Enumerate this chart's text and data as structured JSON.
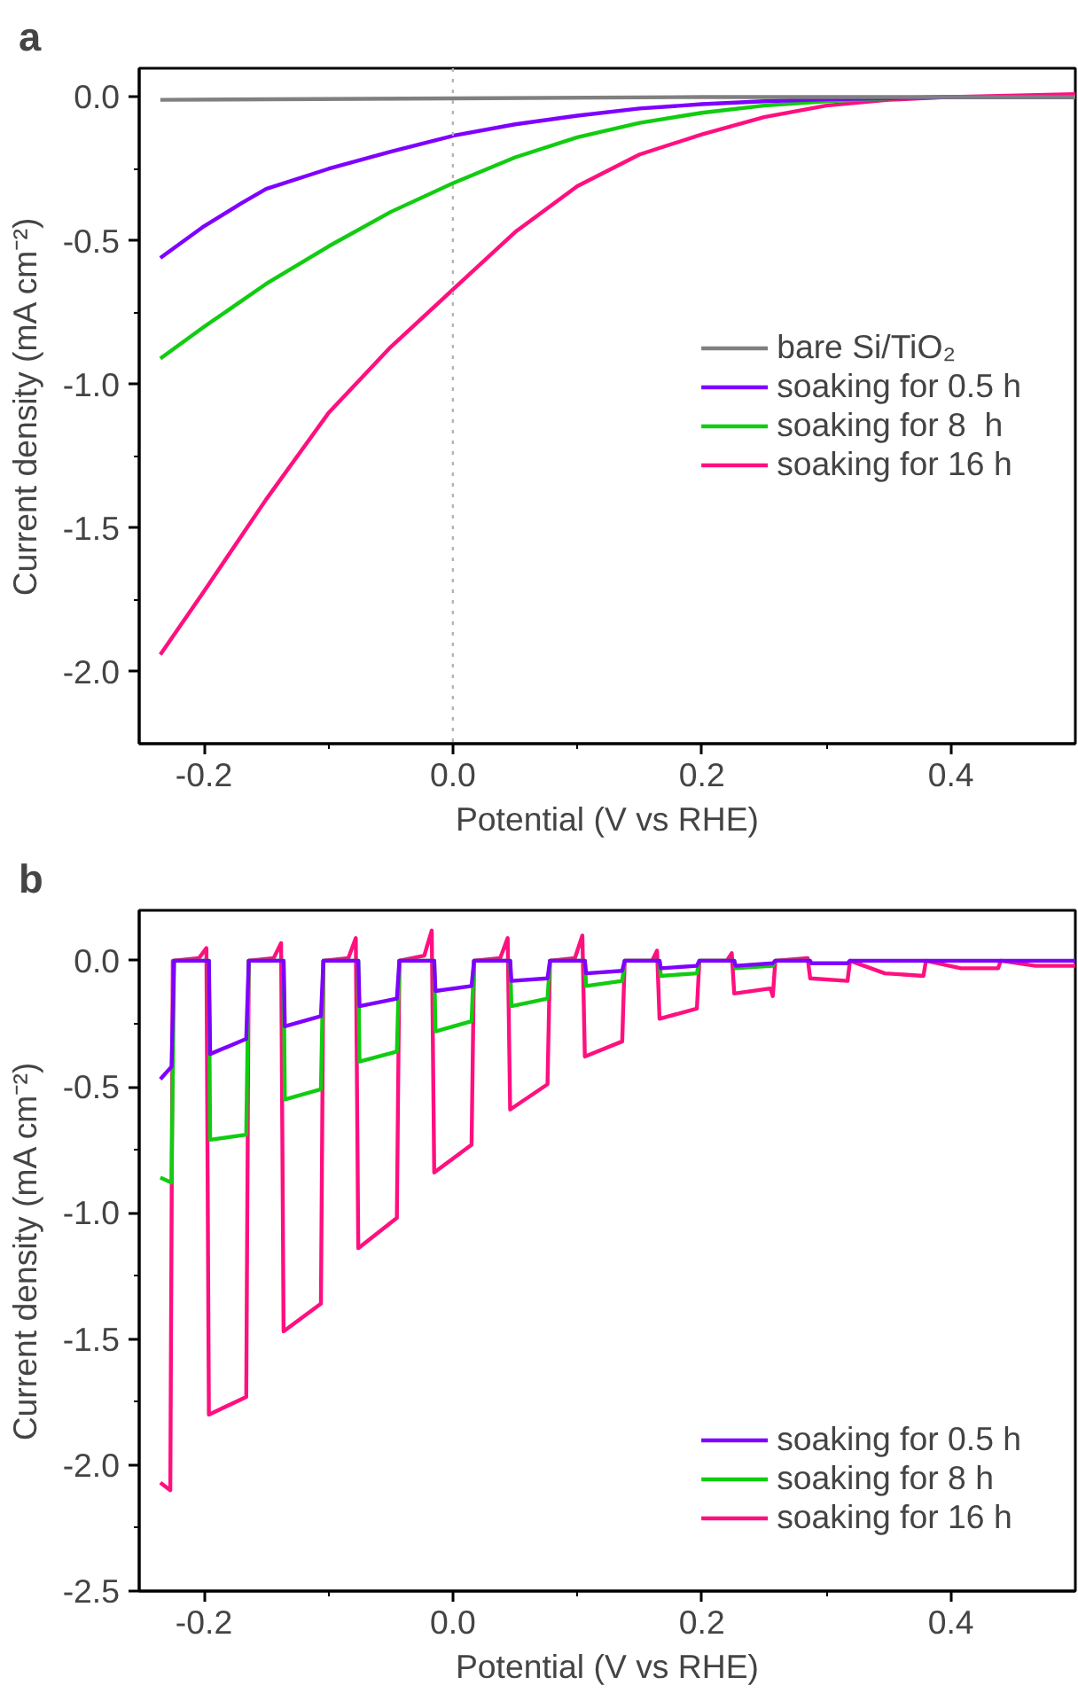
{
  "chart_data": [
    {
      "type": "line",
      "title": "a",
      "xlabel": "Potential (V vs RHE)",
      "ylabel": "Current density (mA cm⁻²)",
      "xlim": [
        -0.252,
        0.5
      ],
      "ylim": [
        -2.25,
        0.1
      ],
      "xticks": [
        {
          "value": -0.2,
          "label": "-0.2"
        },
        {
          "value": -0.1,
          "label": null
        },
        {
          "value": 0,
          "label": "0.0"
        },
        {
          "value": 0.1,
          "label": null
        },
        {
          "value": 0.2,
          "label": "0.2"
        },
        {
          "value": 0.3,
          "label": null
        },
        {
          "value": 0.4,
          "label": "0.4"
        }
      ],
      "yticks": [
        {
          "value": 0,
          "label": "0.0"
        },
        {
          "value": -0.25,
          "label": null
        },
        {
          "value": -0.5,
          "label": "-0.5"
        },
        {
          "value": -0.75,
          "label": null
        },
        {
          "value": -1.0,
          "label": "-1.0"
        },
        {
          "value": -1.25,
          "label": null
        },
        {
          "value": -1.5,
          "label": "-1.5"
        },
        {
          "value": -1.75,
          "label": null
        },
        {
          "value": -2.0,
          "label": "-2.0"
        }
      ],
      "grid": false,
      "legend": "center right",
      "line_style": "solid",
      "ref_lines": [
        {
          "axis": "x",
          "value": 0,
          "color": "#b4b4b4",
          "line_style": "dotted"
        }
      ],
      "series": [
        {
          "name": "bare Si/TiO₂",
          "color": "#808080",
          "x": [
            -0.235,
            0.0,
            0.2,
            0.5
          ],
          "values": [
            -0.01,
            -0.005,
            0.0,
            0.0
          ]
        },
        {
          "name": "soaking for 0.5 h",
          "color": "#7f00ff",
          "x": [
            -0.235,
            -0.2,
            -0.17,
            -0.15,
            -0.1,
            -0.05,
            0.0,
            0.05,
            0.1,
            0.15,
            0.2,
            0.25,
            0.3,
            0.4,
            0.5
          ],
          "values": [
            -0.56,
            -0.45,
            -0.37,
            -0.32,
            -0.25,
            -0.19,
            -0.135,
            -0.095,
            -0.065,
            -0.04,
            -0.025,
            -0.015,
            -0.008,
            0.0,
            0.0
          ]
        },
        {
          "name": "soaking for 8  h",
          "color": "#11cc11",
          "x": [
            -0.235,
            -0.2,
            -0.15,
            -0.1,
            -0.05,
            0.0,
            0.05,
            0.1,
            0.15,
            0.2,
            0.25,
            0.3,
            0.35,
            0.4,
            0.5
          ],
          "values": [
            -0.91,
            -0.8,
            -0.65,
            -0.52,
            -0.4,
            -0.3,
            -0.21,
            -0.14,
            -0.09,
            -0.055,
            -0.03,
            -0.015,
            -0.005,
            0.0,
            0.0
          ]
        },
        {
          "name": "soaking for 16 h",
          "color": "#ff0f7f",
          "x": [
            -0.235,
            -0.2,
            -0.15,
            -0.1,
            -0.05,
            0.0,
            0.05,
            0.1,
            0.15,
            0.2,
            0.25,
            0.3,
            0.35,
            0.4,
            0.5
          ],
          "values": [
            -1.94,
            -1.72,
            -1.4,
            -1.1,
            -0.87,
            -0.67,
            -0.47,
            -0.31,
            -0.2,
            -0.13,
            -0.07,
            -0.03,
            -0.01,
            0.0,
            0.01
          ]
        }
      ]
    },
    {
      "type": "line",
      "title": "b",
      "xlabel": "Potential (V vs RHE)",
      "ylabel": "Current density (mA cm⁻²)",
      "xlim": [
        -0.252,
        0.5
      ],
      "ylim": [
        -2.5,
        0.2
      ],
      "xticks": [
        {
          "value": -0.2,
          "label": "-0.2"
        },
        {
          "value": -0.1,
          "label": null
        },
        {
          "value": 0,
          "label": "0.0"
        },
        {
          "value": 0.1,
          "label": null
        },
        {
          "value": 0.2,
          "label": "0.2"
        },
        {
          "value": 0.3,
          "label": null
        },
        {
          "value": 0.4,
          "label": "0.4"
        }
      ],
      "yticks": [
        {
          "value": 0,
          "label": "0.0"
        },
        {
          "value": -0.25,
          "label": null
        },
        {
          "value": -0.5,
          "label": "-0.5"
        },
        {
          "value": -0.75,
          "label": null
        },
        {
          "value": -1.0,
          "label": "-1.0"
        },
        {
          "value": -1.25,
          "label": null
        },
        {
          "value": -1.5,
          "label": "-1.5"
        },
        {
          "value": -1.75,
          "label": null
        },
        {
          "value": -2.0,
          "label": "-2.0"
        },
        {
          "value": -2.25,
          "label": null
        },
        {
          "value": -2.5,
          "label": "-2.5"
        }
      ],
      "grid": false,
      "legend": "bottom right",
      "line_style": "solid",
      "series": [
        {
          "name": "soaking for 0.5 h",
          "color": "#7f00ff",
          "x": [
            -0.235,
            -0.226,
            -0.224,
            -0.196,
            -0.195,
            -0.166,
            -0.164,
            -0.136,
            -0.135,
            -0.106,
            -0.104,
            -0.076,
            -0.075,
            -0.045,
            -0.043,
            -0.015,
            -0.014,
            0.015,
            0.017,
            0.046,
            0.047,
            0.076,
            0.078,
            0.106,
            0.107,
            0.136,
            0.138,
            0.166,
            0.167,
            0.196,
            0.198,
            0.226,
            0.227,
            0.257,
            0.259,
            0.287,
            0.288,
            0.317,
            0.319,
            0.5
          ],
          "values": [
            -0.47,
            -0.42,
            0,
            0,
            -0.37,
            -0.31,
            0,
            0,
            -0.26,
            -0.22,
            0,
            0,
            -0.18,
            -0.15,
            0,
            0,
            -0.12,
            -0.1,
            0,
            0,
            -0.08,
            -0.07,
            0,
            0,
            -0.05,
            -0.04,
            0,
            0,
            -0.03,
            -0.02,
            0,
            0,
            -0.02,
            -0.01,
            0,
            0,
            -0.01,
            -0.01,
            0,
            0
          ]
        },
        {
          "name": "soaking for 8 h",
          "color": "#11cc11",
          "x": [
            -0.235,
            -0.226,
            -0.224,
            -0.196,
            -0.195,
            -0.166,
            -0.164,
            -0.136,
            -0.135,
            -0.106,
            -0.104,
            -0.076,
            -0.075,
            -0.045,
            -0.043,
            -0.015,
            -0.014,
            0.015,
            0.017,
            0.046,
            0.047,
            0.076,
            0.078,
            0.106,
            0.107,
            0.136,
            0.138,
            0.166,
            0.167,
            0.196,
            0.198,
            0.226,
            0.227,
            0.257,
            0.259,
            0.287
          ],
          "values": [
            -0.86,
            -0.88,
            0,
            0,
            -0.71,
            -0.69,
            0,
            0,
            -0.55,
            -0.51,
            0,
            0,
            -0.4,
            -0.36,
            0,
            0,
            -0.28,
            -0.24,
            0,
            0,
            -0.18,
            -0.15,
            0,
            0,
            -0.1,
            -0.08,
            0,
            0,
            -0.06,
            -0.05,
            0,
            0,
            -0.03,
            -0.02,
            0,
            0
          ]
        },
        {
          "name": "soaking for 16 h",
          "color": "#ff0f7f",
          "x": [
            -0.235,
            -0.227,
            -0.225,
            -0.204,
            -0.198,
            -0.196,
            -0.166,
            -0.164,
            -0.144,
            -0.138,
            -0.136,
            -0.106,
            -0.104,
            -0.084,
            -0.078,
            -0.076,
            -0.045,
            -0.043,
            -0.023,
            -0.017,
            -0.015,
            0.015,
            0.017,
            0.038,
            0.044,
            0.046,
            0.076,
            0.078,
            0.098,
            0.104,
            0.106,
            0.136,
            0.138,
            0.16,
            0.164,
            0.166,
            0.196,
            0.198,
            0.22,
            0.224,
            0.226,
            0.255,
            0.257,
            0.259,
            0.285,
            0.287,
            0.317,
            0.319,
            0.347,
            0.378,
            0.38,
            0.408,
            0.438,
            0.44,
            0.468,
            0.5
          ],
          "values": [
            -2.07,
            -2.1,
            0,
            0.01,
            0.05,
            -1.8,
            -1.73,
            0,
            0.01,
            0.07,
            -1.47,
            -1.36,
            0,
            0.01,
            0.09,
            -1.14,
            -1.02,
            0,
            0.02,
            0.12,
            -0.84,
            -0.73,
            0,
            0.01,
            0.09,
            -0.59,
            -0.49,
            0,
            0.01,
            0.1,
            -0.38,
            -0.32,
            0,
            0.0,
            0.04,
            -0.23,
            -0.19,
            0,
            0.0,
            0.03,
            -0.13,
            -0.11,
            -0.14,
            0,
            0.01,
            -0.07,
            -0.08,
            0,
            -0.05,
            -0.06,
            0,
            -0.03,
            -0.03,
            0,
            -0.02,
            -0.02
          ]
        }
      ]
    }
  ]
}
